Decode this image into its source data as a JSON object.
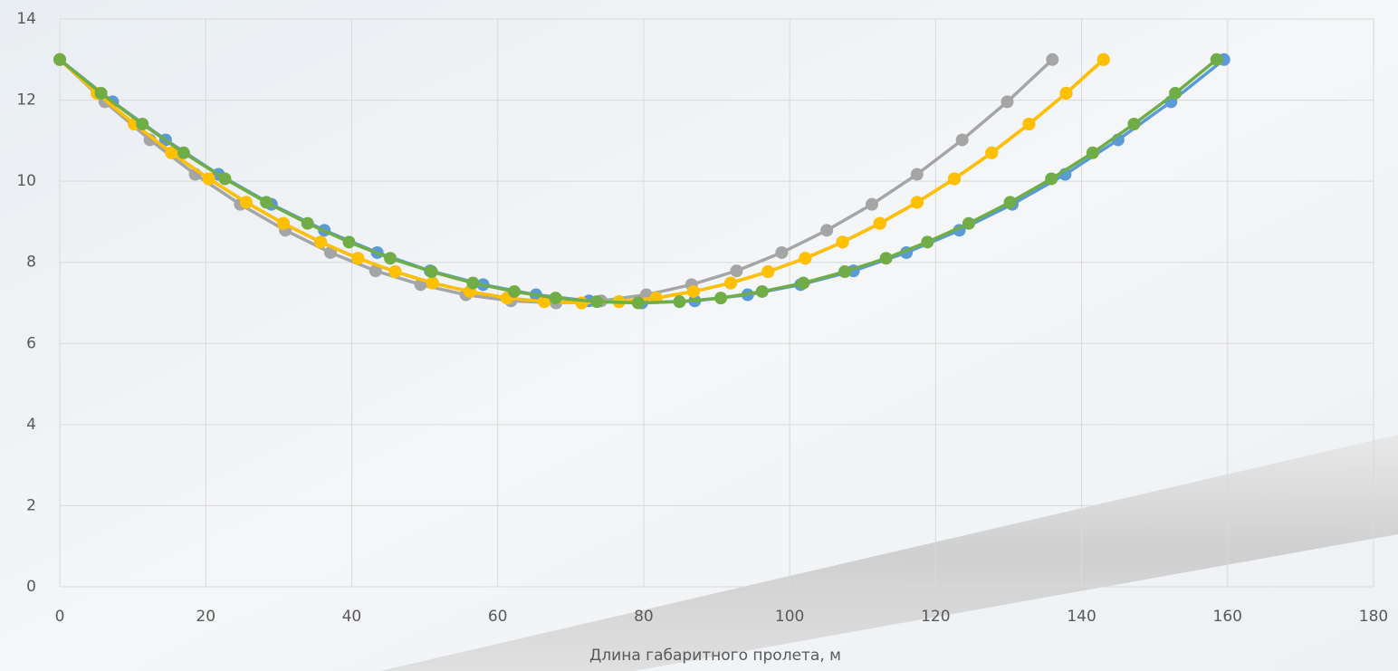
{
  "chart_data": {
    "type": "line",
    "x_label": "Длина габаритного пролета, м",
    "xlim": [
      0,
      180
    ],
    "xticks": [
      0,
      20,
      40,
      60,
      80,
      100,
      120,
      140,
      160,
      180
    ],
    "ylim": [
      0,
      14
    ],
    "yticks": [
      0,
      2,
      4,
      6,
      8,
      10,
      12,
      14
    ],
    "grid": true,
    "markers": true,
    "series": [
      {
        "color": "#5b9bd5",
        "x": [
          0,
          7.25,
          14.5,
          21.75,
          29,
          36.25,
          43.5,
          50.75,
          58,
          65.25,
          72.5,
          79.75,
          87,
          94.25,
          101.5,
          108.75,
          116,
          123.25,
          130.5,
          137.75,
          145,
          152.25,
          159.5
        ],
        "values": [
          13,
          11.96,
          11.02,
          10.17,
          9.43,
          8.79,
          8.24,
          7.79,
          7.45,
          7.2,
          7.05,
          7,
          7.05,
          7.2,
          7.45,
          7.79,
          8.24,
          8.79,
          9.43,
          10.17,
          11.02,
          11.96,
          13
        ]
      },
      {
        "color": "#ed7d31",
        "x": [
          0,
          5.11,
          10.21,
          15.32,
          20.43,
          25.54,
          30.64,
          35.75,
          40.86,
          45.96,
          51.07,
          56.18,
          61.29,
          66.39,
          71.5,
          76.61,
          81.71,
          86.82,
          91.93,
          97.04,
          102.14,
          107.25,
          112.36,
          117.46,
          122.57,
          127.68,
          132.79,
          137.89,
          143
        ],
        "values": [
          13,
          12.17,
          11.41,
          10.7,
          10.06,
          9.48,
          8.96,
          8.5,
          8.1,
          7.77,
          7.49,
          7.28,
          7.12,
          7.03,
          7,
          7.03,
          7.12,
          7.28,
          7.49,
          7.77,
          8.1,
          8.5,
          8.96,
          9.48,
          10.06,
          10.7,
          11.41,
          12.17,
          13
        ]
      },
      {
        "color": "#a5a5a5",
        "x": [
          0,
          6.18,
          12.36,
          18.55,
          24.73,
          30.91,
          37.09,
          43.27,
          49.45,
          55.64,
          61.82,
          68,
          74.18,
          80.36,
          86.55,
          92.73,
          98.91,
          105.09,
          111.27,
          117.45,
          123.64,
          129.82,
          136
        ],
        "values": [
          13,
          11.96,
          11.02,
          10.17,
          9.43,
          8.79,
          8.24,
          7.79,
          7.45,
          7.2,
          7.05,
          7,
          7.05,
          7.2,
          7.45,
          7.79,
          8.24,
          8.79,
          9.43,
          10.17,
          11.02,
          11.96,
          13
        ]
      },
      {
        "color": "#ffc000",
        "x": [
          0,
          5.11,
          10.21,
          15.32,
          20.43,
          25.54,
          30.64,
          35.75,
          40.86,
          45.96,
          51.07,
          56.18,
          61.29,
          66.39,
          71.5,
          76.61,
          81.71,
          86.82,
          91.93,
          97.04,
          102.14,
          107.25,
          112.36,
          117.46,
          122.57,
          127.68,
          132.79,
          137.89,
          143
        ],
        "values": [
          13,
          12.17,
          11.41,
          10.7,
          10.06,
          9.48,
          8.96,
          8.5,
          8.1,
          7.77,
          7.49,
          7.28,
          7.12,
          7.03,
          7,
          7.03,
          7.12,
          7.28,
          7.49,
          7.77,
          8.1,
          8.5,
          8.96,
          9.48,
          10.06,
          10.7,
          11.41,
          12.17,
          13
        ]
      },
      {
        "color": "#70ad47",
        "x": [
          0,
          5.66,
          11.32,
          16.98,
          22.64,
          28.3,
          33.96,
          39.63,
          45.29,
          50.95,
          56.61,
          62.27,
          67.93,
          73.59,
          79.25,
          84.91,
          90.57,
          96.23,
          101.89,
          107.55,
          113.21,
          118.88,
          124.54,
          130.2,
          135.86,
          141.52,
          147.18,
          152.84,
          158.5
        ],
        "values": [
          13,
          12.17,
          11.41,
          10.7,
          10.06,
          9.48,
          8.96,
          8.5,
          8.1,
          7.77,
          7.49,
          7.28,
          7.12,
          7.03,
          7,
          7.03,
          7.12,
          7.28,
          7.49,
          7.77,
          8.1,
          8.5,
          8.96,
          9.48,
          10.06,
          10.7,
          11.41,
          12.17,
          13
        ]
      }
    ]
  }
}
